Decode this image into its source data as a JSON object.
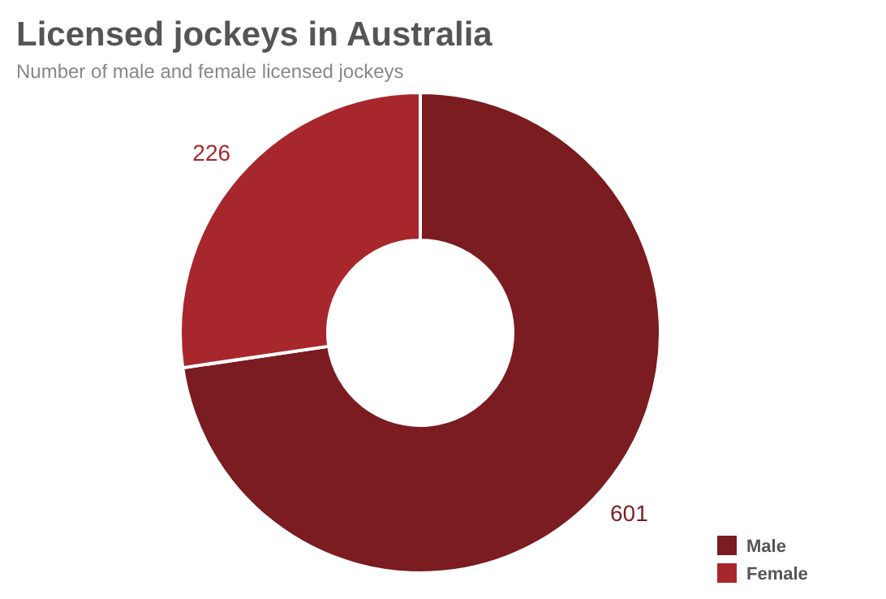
{
  "chart_data": {
    "type": "donut",
    "title": "Licensed jockeys in Australia",
    "subtitle": "Number of male and female licensed jockeys",
    "categories": [
      "Male",
      "Female"
    ],
    "values": [
      601,
      226
    ],
    "colors": [
      "#7a1c20",
      "#a8272c"
    ],
    "data_labels": true,
    "legend": "bottom right"
  }
}
